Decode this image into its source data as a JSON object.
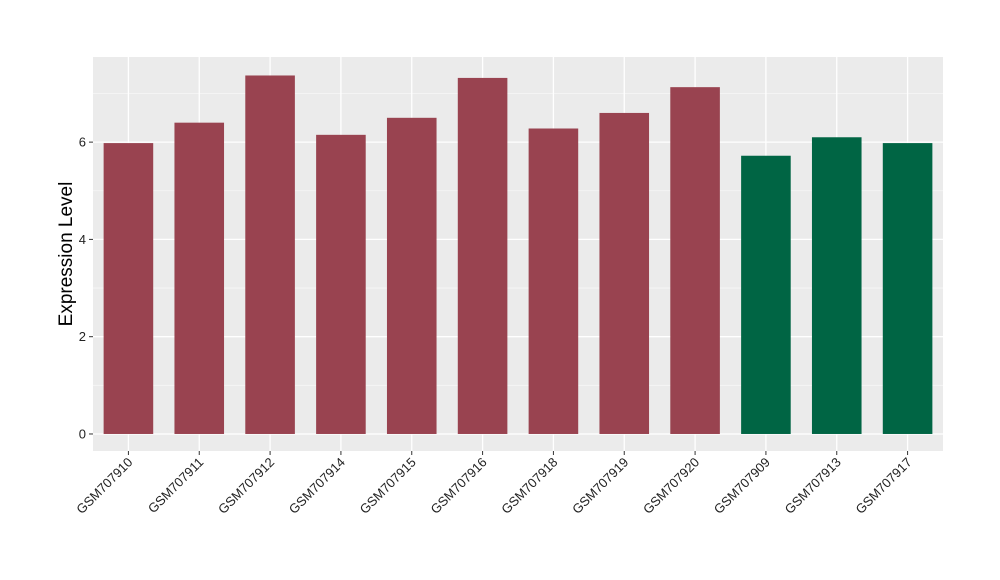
{
  "chart_data": {
    "type": "bar",
    "title": "",
    "xlabel": "",
    "ylabel": "Expression Level",
    "ylim": [
      -0.35,
      7.75
    ],
    "yticks": [
      0,
      2,
      4,
      6
    ],
    "grid": true,
    "background": "#ebebeb",
    "categories": [
      "GSM707910",
      "GSM707911",
      "GSM707912",
      "GSM707914",
      "GSM707915",
      "GSM707916",
      "GSM707918",
      "GSM707919",
      "GSM707920",
      "GSM707909",
      "GSM707913",
      "GSM707917"
    ],
    "values": [
      5.98,
      6.4,
      7.37,
      6.15,
      6.5,
      7.32,
      6.28,
      6.6,
      7.13,
      5.72,
      6.1,
      5.98
    ],
    "groups": [
      "a",
      "a",
      "a",
      "a",
      "a",
      "a",
      "a",
      "a",
      "a",
      "b",
      "b",
      "b"
    ],
    "group_colors": {
      "a": "#994350",
      "b": "#006544"
    }
  }
}
